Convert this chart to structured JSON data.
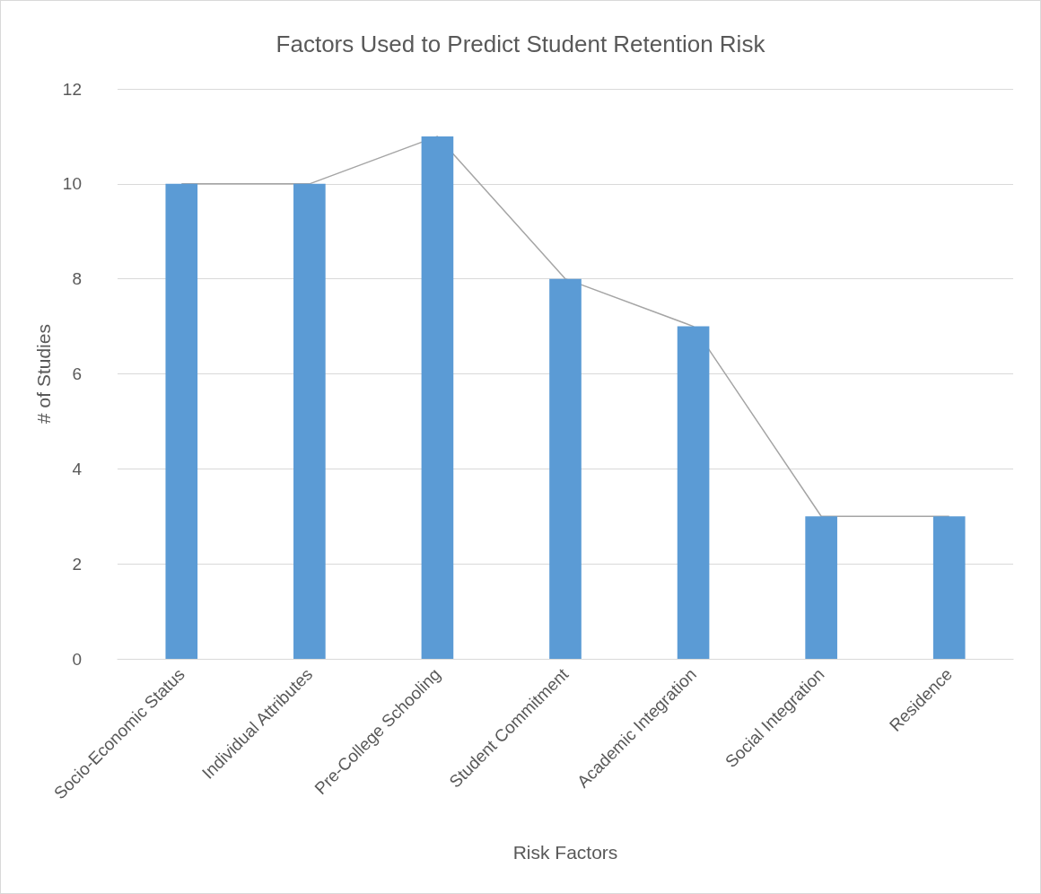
{
  "chart_data": {
    "type": "bar",
    "title": "Factors Used to Predict Student Retention Risk",
    "xlabel": "Risk Factors",
    "ylabel": "# of Studies",
    "categories": [
      "Socio-Economic Status",
      "Individual Attributes",
      "Pre-College Schooling",
      "Student Commitment",
      "Academic Integration",
      "Social Integration",
      "Residence"
    ],
    "series": [
      {
        "color": "#5b9bd5",
        "values": [
          10,
          10,
          11,
          8,
          7,
          3,
          3
        ]
      },
      {
        "type": "line",
        "color": "#a5a5a5",
        "values": [
          10,
          10,
          11,
          8,
          7,
          3,
          3
        ]
      }
    ],
    "ylim": [
      0,
      12
    ],
    "yticks": [
      0,
      2,
      4,
      6,
      8,
      10,
      12
    ],
    "grid": "y",
    "marker": "none",
    "line_style": "solid"
  }
}
